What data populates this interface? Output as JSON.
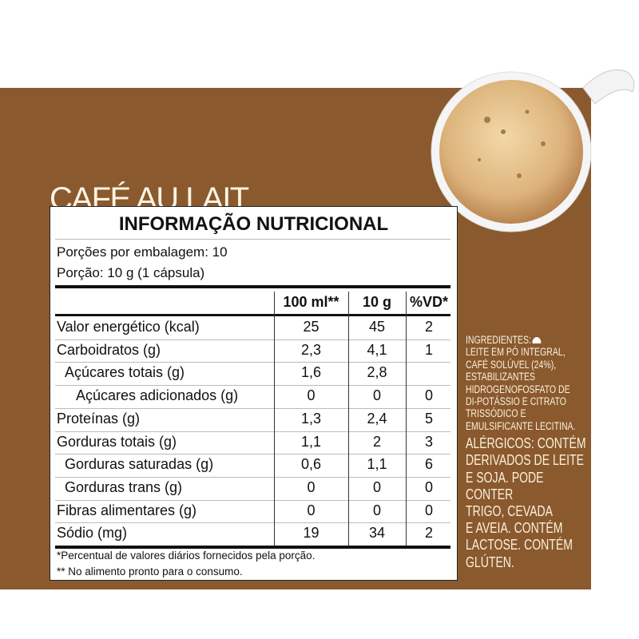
{
  "product_title": "CAFÉ AU LAIT",
  "table": {
    "title": "INFORMAÇÃO NUTRICIONAL",
    "servings_per_package": "Porções por embalagem: 10",
    "serving_size": "Porção: 10 g (1 cápsula)",
    "headers": [
      "",
      "100 ml**",
      "10 g",
      "%VD*"
    ],
    "rows": [
      {
        "label": "Valor energético (kcal)",
        "v100": "25",
        "v10": "45",
        "vd": "2",
        "indent": 0
      },
      {
        "label": "Carboidratos (g)",
        "v100": "2,3",
        "v10": "4,1",
        "vd": "1",
        "indent": 0
      },
      {
        "label": "Açúcares totais (g)",
        "v100": "1,6",
        "v10": "2,8",
        "vd": "",
        "indent": 1
      },
      {
        "label": "Açúcares adicionados (g)",
        "v100": "0",
        "v10": "0",
        "vd": "0",
        "indent": 2
      },
      {
        "label": "Proteínas (g)",
        "v100": "1,3",
        "v10": "2,4",
        "vd": "5",
        "indent": 0
      },
      {
        "label": "Gorduras totais (g)",
        "v100": "1,1",
        "v10": "2",
        "vd": "3",
        "indent": 0
      },
      {
        "label": "Gorduras saturadas (g)",
        "v100": "0,6",
        "v10": "1,1",
        "vd": "6",
        "indent": 1
      },
      {
        "label": "Gorduras trans (g)",
        "v100": "0",
        "v10": "0",
        "vd": "0",
        "indent": 1
      },
      {
        "label": "Fibras alimentares (g)",
        "v100": "0",
        "v10": "0",
        "vd": "0",
        "indent": 0
      },
      {
        "label": "Sódio (mg)",
        "v100": "19",
        "v10": "34",
        "vd": "2",
        "indent": 0
      }
    ],
    "footnotes": [
      "*Percentual de valores diários fornecidos pela porção.",
      "** No alimento pronto para o consumo."
    ]
  },
  "ingredients": {
    "label": "INGREDIENTES:",
    "lines": [
      "LEITE EM PÓ INTEGRAL,",
      "CAFÉ SOLÚVEL (24%),",
      "ESTABILIZANTES",
      "HIDROGENOFOSFATO DE",
      "DI-POTÁSSIO E CITRATO",
      "TRISSÓDICO E",
      "EMULSIFICANTE LECITINA."
    ],
    "allergens_lines": [
      "ALÉRGICOS: CONTÉM",
      "DERIVADOS DE LEITE",
      "E SOJA. PODE CONTER",
      "TRIGO, CEVADA",
      "E AVEIA. CONTÉM",
      "LACTOSE. CONTÉM",
      "GLÚTEN."
    ]
  },
  "colors": {
    "panel": "#8a5a2e",
    "text_light": "#fbf3e4"
  }
}
